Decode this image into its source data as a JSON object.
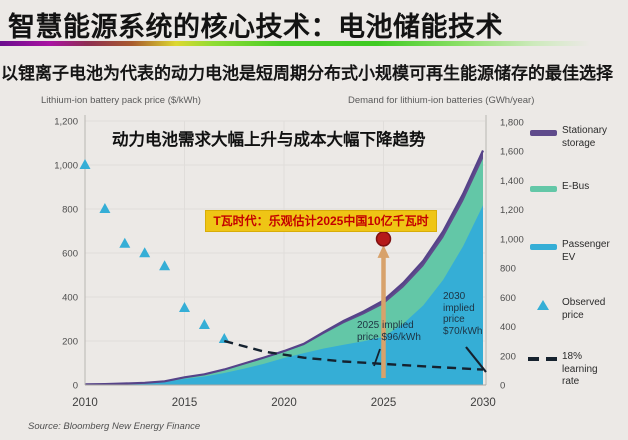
{
  "header": {
    "title": "智慧能源系统的核心技术：电池储能技术",
    "subtitle": "以锂离子电池为代表的动力电池是短周期分布式小规模可再生能源储存的最佳选择"
  },
  "chart": {
    "title": "动力电池需求大幅上升与成本大幅下降趋势",
    "left_axis_label": "Lithium-ion battery pack price ($/kWh)",
    "right_axis_label": "Demand for lithium-ion batteries (GWh/year)",
    "highlight_label": "T瓦时代：乐观估计2025中国10亿千瓦时",
    "note_2025": "2025 implied\nprice $96/kWh",
    "note_2030": "2030\nimplied\nprice\n$70/kWh",
    "source": "Source: Bloomberg New Energy Finance"
  },
  "legend": {
    "items": [
      {
        "label": "Stationary\nstorage",
        "swatch": "line",
        "color": "#5f4b8b"
      },
      {
        "label": "E-Bus",
        "swatch": "line",
        "color": "#63c7a7"
      },
      {
        "label": "Passenger\nEV",
        "swatch": "line",
        "color": "#35aed6"
      },
      {
        "label": "Observed\nprice",
        "swatch": "triangle",
        "color": "#35aed6"
      },
      {
        "label": "18%\nlearning\nrate",
        "swatch": "dashes",
        "color": "#16222e"
      }
    ]
  },
  "chart_data": {
    "type": "area",
    "title": "动力电池需求大幅上升与成本大幅下降趋势",
    "x": [
      2010,
      2011,
      2012,
      2013,
      2014,
      2015,
      2016,
      2017,
      2018,
      2019,
      2020,
      2021,
      2022,
      2023,
      2024,
      2025,
      2026,
      2027,
      2028,
      2029,
      2030
    ],
    "series": [
      {
        "name": "Passenger EV",
        "color": "#35aed6",
        "values": [
          3,
          5,
          8,
          12,
          20,
          42,
          58,
          82,
          112,
          145,
          185,
          218,
          250,
          275,
          300,
          330,
          420,
          545,
          720,
          950,
          1230
        ]
      },
      {
        "name": "E-Bus",
        "color": "#63c7a7",
        "values": [
          1,
          1,
          2,
          3,
          4,
          10,
          14,
          22,
          32,
          38,
          40,
          55,
          100,
          148,
          183,
          222,
          248,
          268,
          288,
          308,
          320
        ]
      },
      {
        "name": "Stationary storage",
        "color": "#5f4b8b",
        "values": [
          0,
          0,
          0,
          0,
          1,
          1,
          1,
          2,
          3,
          5,
          7,
          9,
          12,
          16,
          20,
          26,
          32,
          38,
          44,
          50,
          55
        ]
      }
    ],
    "left_axis": {
      "label": "Lithium-ion battery pack price ($/kWh)",
      "range": [
        0,
        1200
      ],
      "tick_step": 200
    },
    "right_axis": {
      "label": "Demand for lithium-ion batteries (GWh/year)",
      "range": [
        0,
        1800
      ],
      "tick_step": 200
    },
    "x_ticks": [
      2010,
      2015,
      2020,
      2025,
      2030
    ],
    "grid_years": [
      2015,
      2020,
      2025
    ],
    "observed_price": {
      "name": "Observed price",
      "color": "#35aed6",
      "years": [
        2010,
        2011,
        2012,
        2013,
        2014,
        2015,
        2016,
        2017
      ],
      "values": [
        1000,
        800,
        642,
        599,
        540,
        350,
        273,
        209
      ]
    },
    "learning_rate": {
      "name": "18% learning rate",
      "color": "#15222f",
      "points": [
        [
          2017,
          200
        ],
        [
          2019,
          152
        ],
        [
          2021,
          124
        ],
        [
          2023,
          107
        ],
        [
          2025,
          96
        ],
        [
          2027,
          85
        ],
        [
          2030,
          70
        ]
      ]
    },
    "highlight_point": {
      "year": 2025,
      "value_gwh": 1000,
      "dot_color": "#b51a1a",
      "arrow_color": "#d8a26b"
    },
    "implied_prices": [
      {
        "year": 2025,
        "price": "$96/kWh"
      },
      {
        "year": 2030,
        "price": "$70/kWh"
      }
    ],
    "legend_position": "right",
    "grid": "faint"
  }
}
